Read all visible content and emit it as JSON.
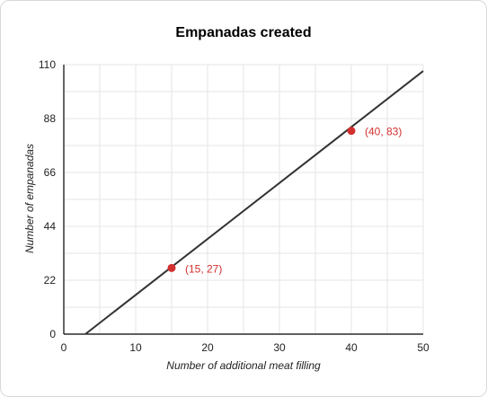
{
  "chart_data": {
    "type": "line",
    "title": "Empanadas created",
    "xlabel": "Number of additional meat filling",
    "ylabel": "Number of empanadas",
    "xlim": [
      0,
      50
    ],
    "ylim": [
      0,
      110
    ],
    "x_ticks": [
      0,
      10,
      20,
      30,
      40,
      50
    ],
    "y_ticks": [
      0,
      22,
      44,
      66,
      88,
      110
    ],
    "grid": true,
    "series": [
      {
        "line": {
          "x": [
            3,
            50
          ],
          "y": [
            0,
            107.4
          ]
        },
        "points": [
          {
            "x": 15,
            "y": 27,
            "label": "(15, 27)"
          },
          {
            "x": 40,
            "y": 83,
            "label": "(40, 83)"
          }
        ]
      }
    ],
    "colors": {
      "line": "#333333",
      "point": "#d32f2f",
      "grid": "#e6e6e6",
      "axis": "#000000"
    }
  }
}
